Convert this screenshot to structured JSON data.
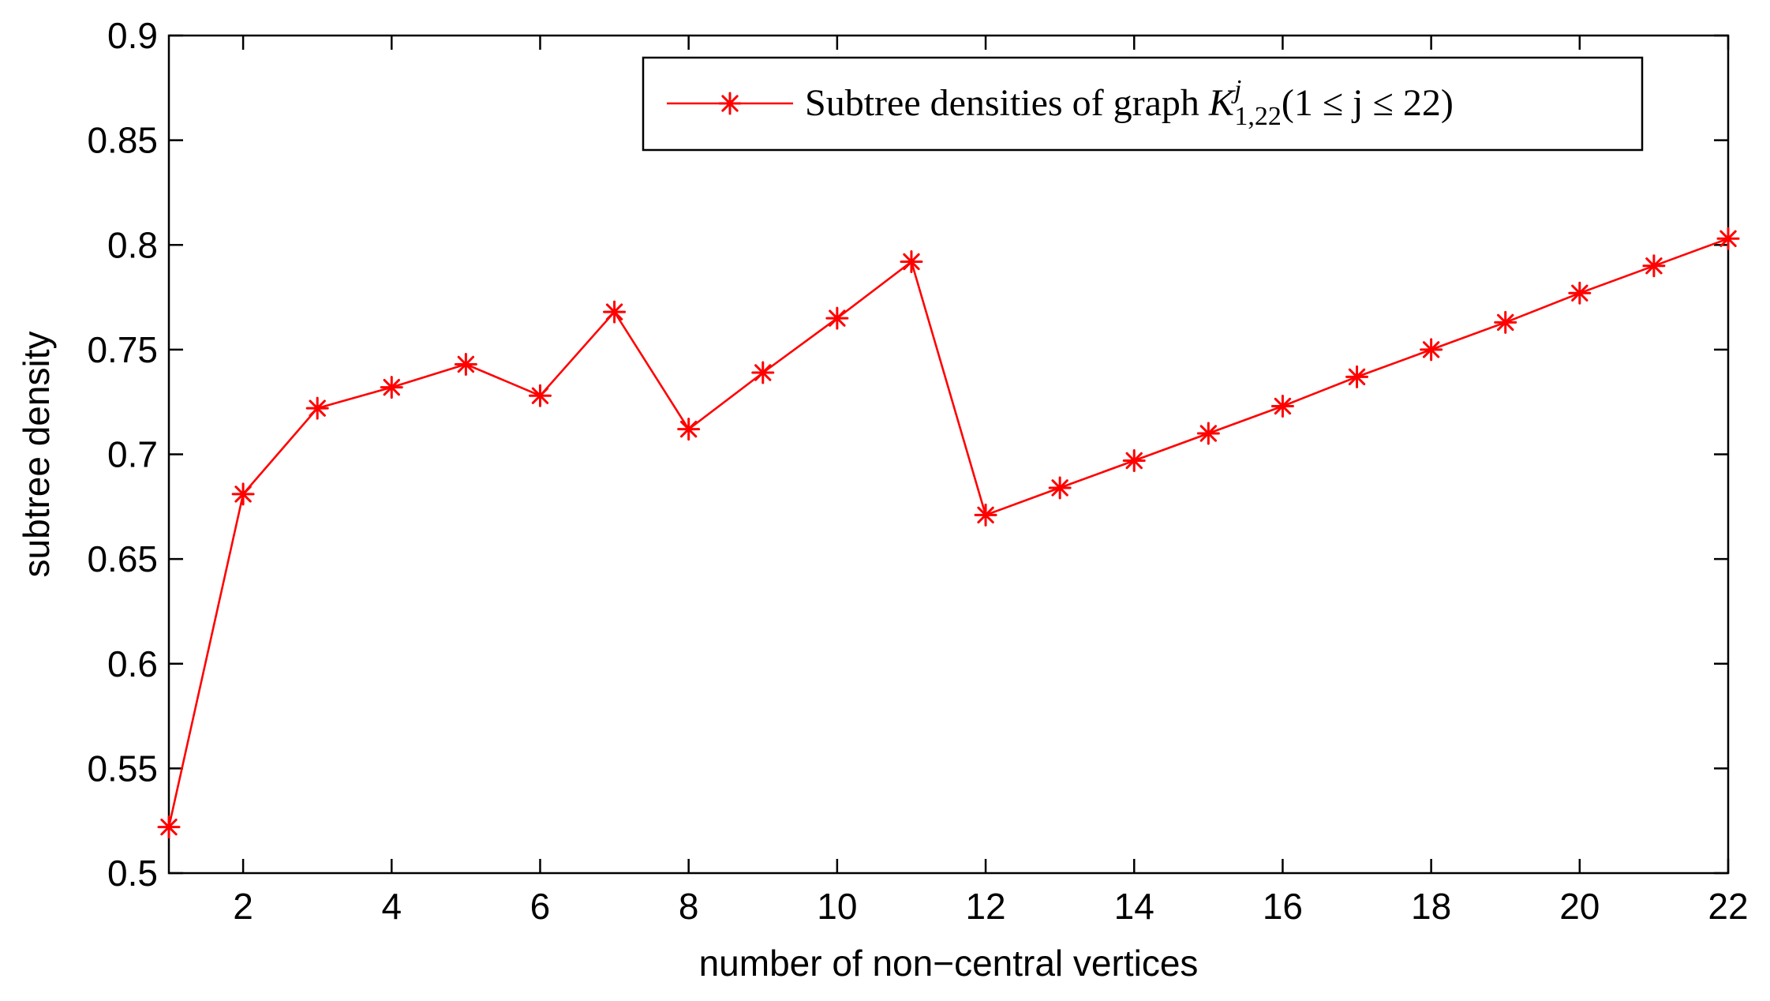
{
  "chart_data": {
    "type": "line",
    "title": "",
    "xlabel": "number of non−central vertices",
    "ylabel": "subtree density",
    "xlim": [
      1,
      22
    ],
    "ylim": [
      0.5,
      0.9
    ],
    "xticks": [
      2,
      4,
      6,
      8,
      10,
      12,
      14,
      16,
      18,
      20,
      22
    ],
    "xtick_labels": [
      "2",
      "4",
      "6",
      "8",
      "10",
      "12",
      "14",
      "16",
      "18",
      "20",
      "22"
    ],
    "yticks": [
      0.5,
      0.55,
      0.6,
      0.65,
      0.7,
      0.75,
      0.8,
      0.85,
      0.9
    ],
    "ytick_labels": [
      "0.5",
      "0.55",
      "0.6",
      "0.65",
      "0.7",
      "0.75",
      "0.8",
      "0.85",
      "0.9"
    ],
    "grid": false,
    "legend_position": "top-right",
    "series": [
      {
        "name": "Subtree densities of graph K^j_{1,22}(1 ≤ j ≤ 22)",
        "legend_prefix": "Subtree densities of graph ",
        "legend_math_base": "K",
        "legend_math_sup": "j",
        "legend_math_sub": "1,22",
        "legend_math_tail": "(1 ≤ j ≤ 22)",
        "color": "#ff0000",
        "marker": "asterisk",
        "x": [
          1,
          2,
          3,
          4,
          5,
          6,
          7,
          8,
          9,
          10,
          11,
          12,
          13,
          14,
          15,
          16,
          17,
          18,
          19,
          20,
          21,
          22
        ],
        "values": [
          0.522,
          0.681,
          0.722,
          0.732,
          0.743,
          0.728,
          0.768,
          0.712,
          0.739,
          0.765,
          0.792,
          0.671,
          0.684,
          0.697,
          0.71,
          0.723,
          0.737,
          0.75,
          0.763,
          0.777,
          0.79,
          0.803
        ]
      }
    ]
  }
}
